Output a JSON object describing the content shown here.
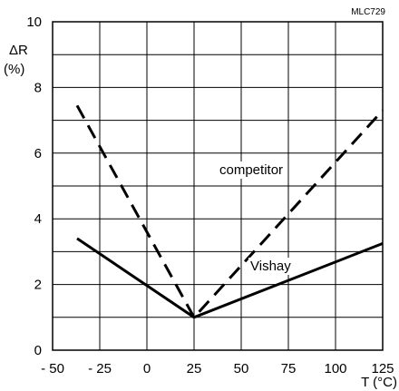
{
  "figure_code": "MLC729",
  "chart_data": {
    "type": "line",
    "title": "",
    "xlabel": "T (°C)",
    "ylabel_symbol": "ΔR",
    "ylabel_unit": "(%)",
    "xlim": [
      -50,
      125
    ],
    "ylim": [
      0,
      10
    ],
    "grid": true,
    "x_ticks": [
      -50,
      -25,
      0,
      25,
      50,
      75,
      100,
      125
    ],
    "x_tick_labels": [
      "- 50",
      "- 25",
      "0",
      "25",
      "50",
      "75",
      "100",
      "125"
    ],
    "y_ticks": [
      0,
      2,
      4,
      6,
      8,
      10
    ],
    "y_tick_labels": [
      "0",
      "2",
      "4",
      "6",
      "8",
      "10"
    ],
    "x_grid_step": 25,
    "y_grid_step": 1,
    "series": [
      {
        "name": "competitor",
        "style": "dashed",
        "color": "#000000",
        "x": [
          -37,
          25,
          125
        ],
        "y": [
          7.45,
          1.0,
          7.3
        ]
      },
      {
        "name": "Vishay",
        "style": "solid",
        "color": "#000000",
        "x": [
          -37,
          25,
          125
        ],
        "y": [
          3.4,
          1.0,
          3.25
        ]
      }
    ]
  }
}
